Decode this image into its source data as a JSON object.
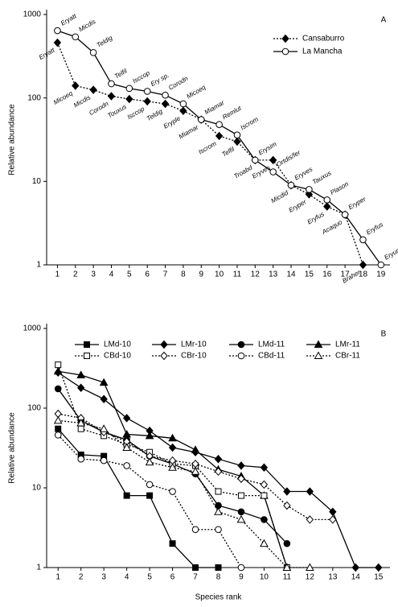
{
  "chart_data": [
    {
      "type": "line",
      "panel_label": "A",
      "ylabel": "Relative abundance",
      "log_scale": true,
      "x": [
        1,
        2,
        3,
        4,
        5,
        6,
        7,
        8,
        9,
        10,
        11,
        12,
        13,
        14,
        15,
        16,
        17,
        18,
        19
      ],
      "xlim": [
        0.4,
        19.5
      ],
      "xticks": [
        1,
        2,
        3,
        4,
        5,
        6,
        7,
        8,
        9,
        10,
        11,
        12,
        13,
        14,
        15,
        16,
        17,
        18,
        19
      ],
      "ylim": [
        1,
        1000
      ],
      "yticks": [
        1,
        10,
        100,
        1000
      ],
      "legend": "upper-right",
      "series": [
        {
          "name": "Cansaburro",
          "color": "#000000",
          "line_style": "dotted",
          "marker": "diamond",
          "marker_fill": "filled",
          "label_side": "below",
          "values": [
            460,
            140,
            125,
            105,
            97,
            91,
            85,
            70,
            55,
            35,
            30,
            18,
            18,
            9,
            7,
            5,
            4,
            1,
            null
          ],
          "point_labels": [
            "Eryatt",
            "Micoeq",
            "Micdis",
            "Corodn",
            "Touxus",
            "Isccop",
            "Teldig",
            "Eryple",
            "Miamar",
            "Iscrom",
            "Telfil",
            "Troabd",
            "Eryves",
            "Micdid",
            "Eryper",
            "Eryfus",
            "Acaquo",
            "Braher",
            null
          ]
        },
        {
          "name": "La Mancha",
          "color": "#000000",
          "line_style": "solid",
          "marker": "circle",
          "marker_fill": "open",
          "label_side": "above",
          "values": [
            640,
            540,
            350,
            148,
            130,
            120,
            108,
            85,
            55,
            48,
            36,
            18,
            13,
            9,
            8,
            6,
            4,
            2,
            1
          ],
          "point_labels": [
            "Eryatt",
            "Micdis",
            "Teldig",
            "Telfil",
            "Isccop",
            "Ery sp.",
            "Corodn",
            "Micoeq",
            "Miamar",
            "Remlut",
            "Iscrom",
            "Erysim",
            "Ortdis/fer",
            "Eryves",
            "Tauxus",
            "Plason",
            "Eryper",
            "Eryfus",
            "Eryumb"
          ]
        }
      ]
    },
    {
      "type": "line",
      "panel_label": "B",
      "ylabel": "Relative abundance",
      "xlabel": "Species rank",
      "log_scale": true,
      "x": [
        1,
        2,
        3,
        4,
        5,
        6,
        7,
        8,
        9,
        10,
        11,
        12,
        13,
        14,
        15
      ],
      "xlim": [
        0.5,
        15.5
      ],
      "xticks": [
        1,
        2,
        3,
        4,
        5,
        6,
        7,
        8,
        9,
        10,
        11,
        12,
        13,
        14,
        15
      ],
      "ylim": [
        1,
        1000
      ],
      "yticks": [
        1,
        10,
        100,
        1000
      ],
      "legend": "upper-center",
      "series": [
        {
          "name": "LMd-10",
          "color": "#000000",
          "line_style": "solid",
          "marker": "square",
          "marker_fill": "filled",
          "values": [
            55,
            26,
            25,
            8,
            8,
            2,
            1,
            1,
            null,
            null,
            null,
            null,
            null,
            null,
            null
          ]
        },
        {
          "name": "LMr-10",
          "color": "#000000",
          "line_style": "solid",
          "marker": "diamond",
          "marker_fill": "filled",
          "values": [
            280,
            180,
            130,
            75,
            52,
            32,
            28,
            23,
            19,
            18,
            9,
            9,
            5,
            1,
            1
          ]
        },
        {
          "name": "LMd-11",
          "color": "#000000",
          "line_style": "solid",
          "marker": "circle",
          "marker_fill": "filled",
          "values": [
            175,
            70,
            50,
            40,
            25,
            20,
            15,
            6,
            5,
            4,
            2,
            null,
            null,
            null,
            null
          ]
        },
        {
          "name": "LMr-11",
          "color": "#000000",
          "line_style": "solid",
          "marker": "triangle",
          "marker_fill": "filled",
          "values": [
            290,
            260,
            210,
            47,
            45,
            42,
            30,
            17,
            14,
            8,
            1,
            null,
            null,
            null,
            null
          ]
        },
        {
          "name": "CBd-10",
          "color": "#000000",
          "line_style": "dotted",
          "marker": "square",
          "marker_fill": "open",
          "values": [
            350,
            55,
            45,
            35,
            28,
            20,
            19,
            9,
            8,
            8,
            1,
            null,
            null,
            null,
            null
          ]
        },
        {
          "name": "CBr-10",
          "color": "#000000",
          "line_style": "dotted",
          "marker": "diamond",
          "marker_fill": "open",
          "values": [
            85,
            75,
            50,
            38,
            25,
            22,
            20,
            16,
            13,
            11,
            6,
            4,
            4,
            null,
            null
          ]
        },
        {
          "name": "CBd-11",
          "color": "#000000",
          "line_style": "dotted",
          "marker": "circle",
          "marker_fill": "open",
          "values": [
            46,
            23,
            22,
            19,
            11,
            9,
            3,
            3,
            1,
            null,
            null,
            null,
            null,
            null,
            null
          ]
        },
        {
          "name": "CBr-11",
          "color": "#000000",
          "line_style": "dotted",
          "marker": "triangle",
          "marker_fill": "open",
          "values": [
            70,
            65,
            55,
            32,
            21,
            18,
            16,
            5,
            4,
            2,
            1,
            1,
            null,
            null,
            null
          ]
        }
      ]
    }
  ]
}
